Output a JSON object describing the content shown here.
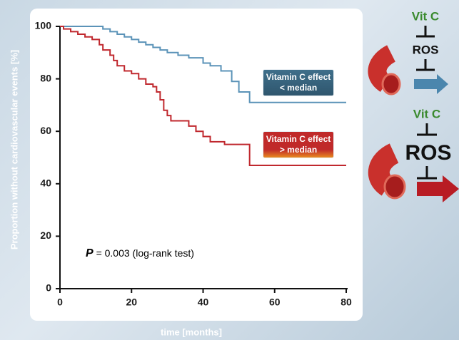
{
  "chart_data": {
    "type": "line",
    "step": "post",
    "xlabel": "time [months]",
    "ylabel": "Proportion without cardiovascular events [%]",
    "xlim": [
      0,
      80
    ],
    "ylim": [
      0,
      100
    ],
    "xticks": [
      0,
      20,
      40,
      60,
      80
    ],
    "yticks": [
      0,
      20,
      40,
      60,
      80,
      100
    ],
    "annotation": {
      "symbol": "P",
      "text": "= 0.003 (log-rank test)"
    },
    "series": [
      {
        "name": "Vitamin C effect < median",
        "color": "#5b93b8",
        "x": [
          0,
          12,
          14,
          16,
          18,
          20,
          22,
          24,
          26,
          28,
          30,
          33,
          36,
          40,
          42,
          45,
          48,
          50,
          53,
          80
        ],
        "values": [
          100,
          99,
          98,
          97,
          96,
          95,
          94,
          93,
          92,
          91,
          90,
          89,
          88,
          86,
          85,
          83,
          79,
          75,
          71,
          71
        ]
      },
      {
        "name": "Vitamin C effect > median",
        "color": "#c0282e",
        "x": [
          0,
          1,
          3,
          5,
          7,
          9,
          11,
          12,
          14,
          15,
          16,
          18,
          20,
          22,
          24,
          26,
          27,
          28,
          29,
          30,
          31,
          33,
          36,
          38,
          40,
          42,
          46,
          50,
          53,
          80
        ],
        "values": [
          100,
          99,
          98,
          97,
          96,
          95,
          93,
          91,
          89,
          87,
          85,
          83,
          82,
          80,
          78,
          77,
          75,
          72,
          68,
          66,
          64,
          64,
          62,
          60,
          58,
          56,
          55,
          55,
          47,
          47
        ]
      }
    ]
  },
  "diagram": {
    "panels": [
      {
        "agent": "Vit C",
        "target": "ROS"
      },
      {
        "agent": "Vit C",
        "target": "ROS"
      }
    ]
  }
}
